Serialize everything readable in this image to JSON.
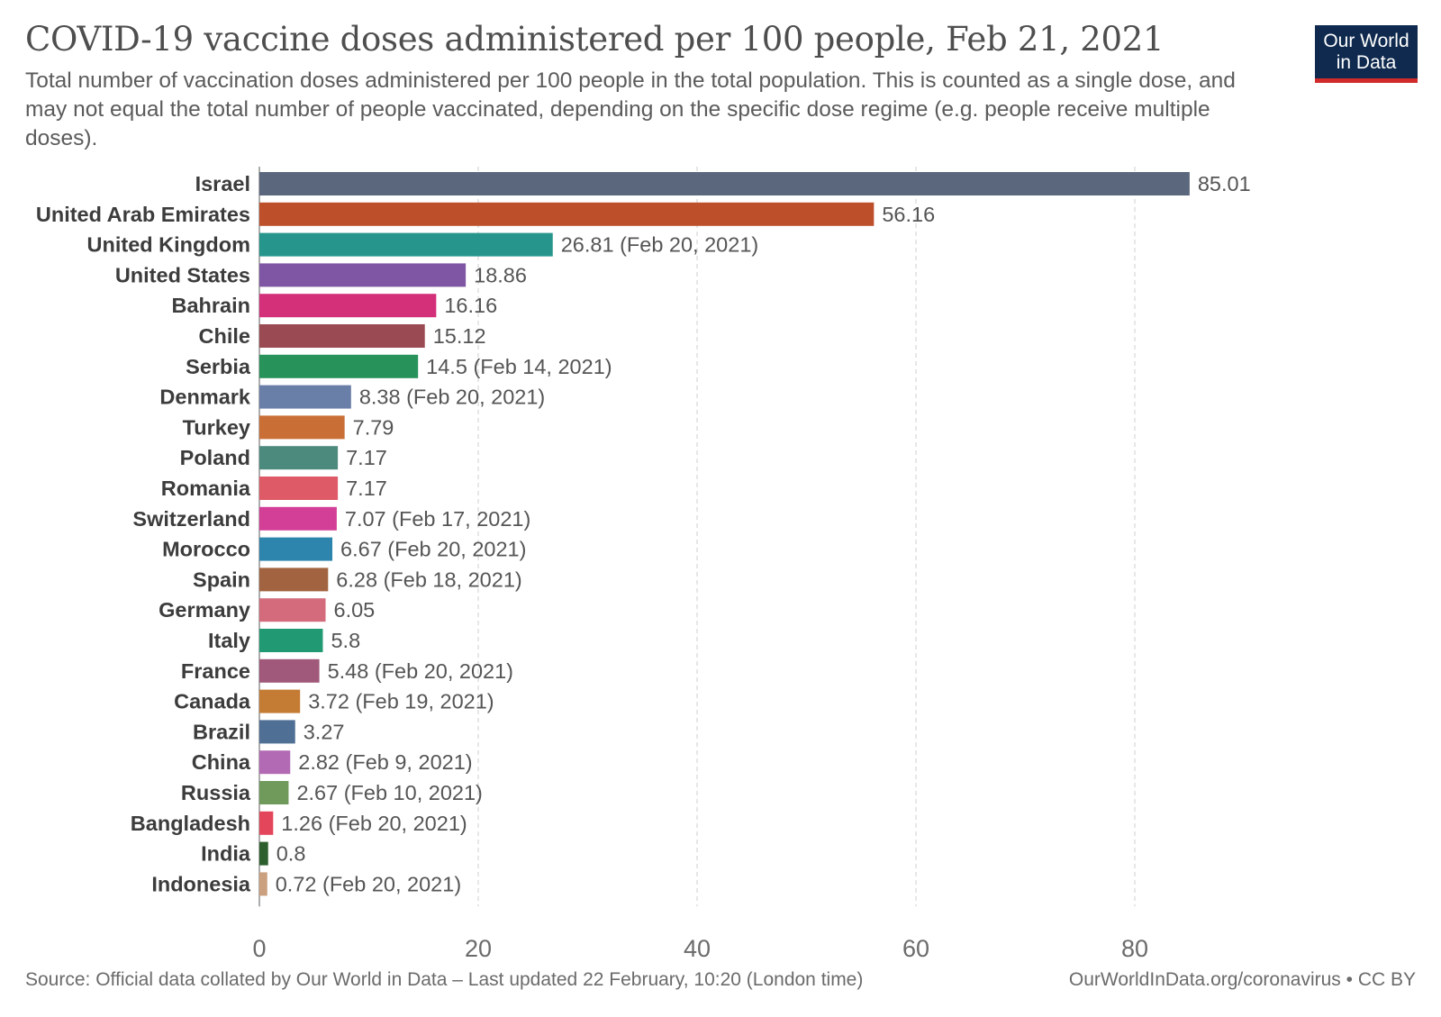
{
  "header": {
    "title": "COVID-19 vaccine doses administered per 100 people, Feb 21, 2021",
    "subtitle": "Total number of vaccination doses administered per 100 people in the total population. This is counted as a single dose, and may not equal the total number of people vaccinated, depending on the specific dose regime (e.g. people receive multiple doses).",
    "logo_line1": "Our World",
    "logo_line2": "in Data"
  },
  "footer": {
    "source": "Source: Official data collated by Our World in Data – Last updated 22 February, 10:20 (London time)",
    "attribution": "OurWorldInData.org/coronavirus • CC BY"
  },
  "chart_data": {
    "type": "bar",
    "orientation": "horizontal",
    "title": "COVID-19 vaccine doses administered per 100 people, Feb 21, 2021",
    "xlabel": "",
    "ylabel": "",
    "xlim": [
      0,
      95
    ],
    "xticks": [
      0,
      20,
      40,
      60,
      80
    ],
    "grid": true,
    "categories": [
      "Israel",
      "United Arab Emirates",
      "United Kingdom",
      "United States",
      "Bahrain",
      "Chile",
      "Serbia",
      "Denmark",
      "Turkey",
      "Poland",
      "Romania",
      "Switzerland",
      "Morocco",
      "Spain",
      "Germany",
      "Italy",
      "France",
      "Canada",
      "Brazil",
      "China",
      "Russia",
      "Bangladesh",
      "India",
      "Indonesia"
    ],
    "values": [
      85.01,
      56.16,
      26.81,
      18.86,
      16.16,
      15.12,
      14.5,
      8.38,
      7.79,
      7.17,
      7.17,
      7.07,
      6.67,
      6.28,
      6.05,
      5.8,
      5.48,
      3.72,
      3.27,
      2.82,
      2.67,
      1.26,
      0.8,
      0.72
    ],
    "value_labels": [
      "85.01",
      "56.16",
      "26.81 (Feb 20, 2021)",
      "18.86",
      "16.16",
      "15.12",
      "14.5 (Feb 14, 2021)",
      "8.38 (Feb 20, 2021)",
      "7.79",
      "7.17",
      "7.17",
      "7.07 (Feb 17, 2021)",
      "6.67 (Feb 20, 2021)",
      "6.28 (Feb 18, 2021)",
      "6.05",
      "5.8",
      "5.48 (Feb 20, 2021)",
      "3.72 (Feb 19, 2021)",
      "3.27",
      "2.82 (Feb 9, 2021)",
      "2.67 (Feb 10, 2021)",
      "1.26 (Feb 20, 2021)",
      "0.8",
      "0.72 (Feb 20, 2021)"
    ],
    "colors": [
      "#5a677d",
      "#bd4f2a",
      "#26968c",
      "#7e56a3",
      "#d4307a",
      "#9a4a52",
      "#27925a",
      "#6a7fa8",
      "#c96f36",
      "#4d8a7e",
      "#de5a66",
      "#d33f97",
      "#2d85ad",
      "#a26440",
      "#d36b7c",
      "#219a74",
      "#a0597a",
      "#c47c35",
      "#4f6f95",
      "#b26ab4",
      "#6f9a5c",
      "#e3465a",
      "#2d5e2d",
      "#caa07e"
    ]
  }
}
